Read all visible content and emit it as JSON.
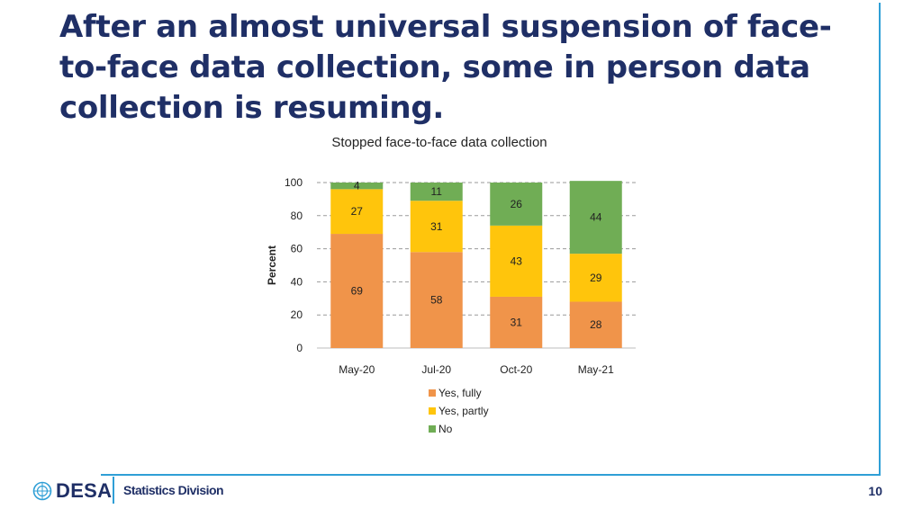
{
  "slide": {
    "title": "After an almost universal suspension of face-to-face data collection, some in person data collection is resuming.",
    "footer_org": "DESA",
    "footer_division": "Statistics Division",
    "page_number": "10"
  },
  "colors": {
    "title": "#1f2f66",
    "accent_line": "#2f9fd6",
    "yes_fully": "#f0944a",
    "yes_partly": "#ffc50c",
    "no": "#70ad55"
  },
  "chart_data": {
    "type": "bar",
    "stacked": true,
    "title": "Stopped face-to-face data collection",
    "ylabel": "Percent",
    "xlabel": "",
    "ylim": [
      0,
      100
    ],
    "yticks": [
      0,
      20,
      40,
      60,
      80,
      100
    ],
    "grid": "horizontal dashed",
    "legend_position": "bottom",
    "categories": [
      "May-20",
      "Jul-20",
      "Oct-20",
      "May-21"
    ],
    "series": [
      {
        "name": "Yes, fully",
        "color": "#f0944a",
        "values": [
          69,
          58,
          31,
          28
        ]
      },
      {
        "name": "Yes, partly",
        "color": "#ffc50c",
        "values": [
          27,
          31,
          43,
          29
        ]
      },
      {
        "name": "No",
        "color": "#70ad55",
        "values": [
          4,
          11,
          26,
          44
        ]
      }
    ]
  }
}
